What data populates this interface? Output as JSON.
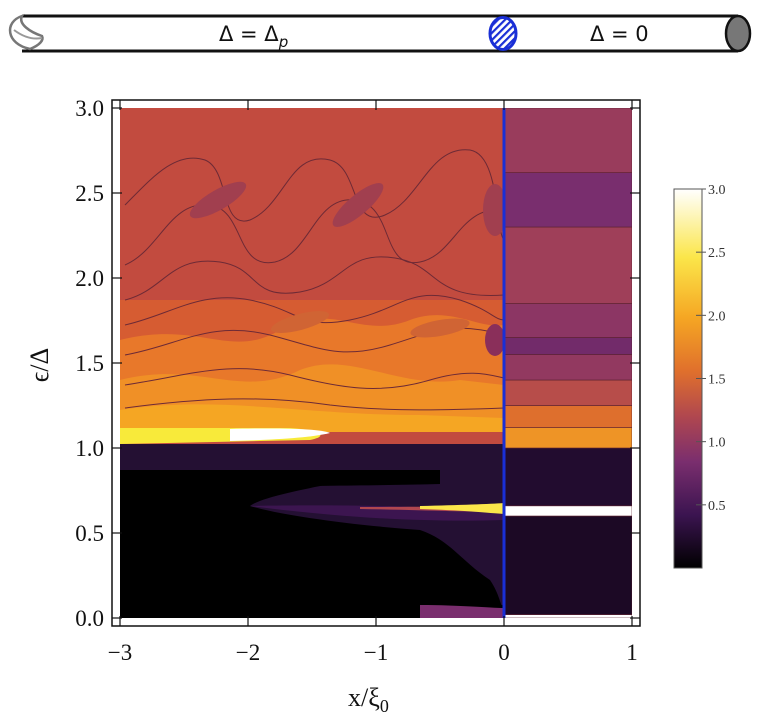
{
  "schematic": {
    "left_label_main": "Δ = Δ",
    "left_label_sub": "p",
    "right_label": "Δ = 0"
  },
  "chart_data": {
    "type": "heatmap",
    "xlabel_main": "x/ξ",
    "xlabel_sub": "0",
    "ylabel": "ϵ/Δ",
    "xlim": [
      -3,
      1
    ],
    "ylim": [
      0,
      3
    ],
    "x_ticks": [
      -3,
      -2,
      -1,
      0,
      1
    ],
    "x_tick_labels": [
      "−3",
      "−2",
      "−1",
      "0",
      "1"
    ],
    "y_ticks": [
      0,
      0.5,
      1,
      1.5,
      2,
      2.5,
      3
    ],
    "y_tick_labels": [
      "0.0",
      "0.5",
      "1.0",
      "1.5",
      "2.0",
      "2.5",
      "3.0"
    ],
    "interface_line_x": 0,
    "interface_line_color": "#1a2fd6",
    "colorbar": {
      "range": [
        0,
        3
      ],
      "ticks": [
        0.5,
        1,
        1.5,
        2,
        2.5,
        3
      ],
      "tick_labels": [
        "0.5",
        "1.0",
        "1.5",
        "2.0",
        "2.5",
        "3.0"
      ],
      "colors": [
        "#000000",
        "#3b1450",
        "#7a2e6e",
        "#b0474f",
        "#e0702c",
        "#f5a623",
        "#fbe64a",
        "#ffffff"
      ]
    },
    "right_region_bands": [
      {
        "y0": 0.0,
        "y1": 0.02,
        "value": 3.0
      },
      {
        "y0": 0.02,
        "y1": 0.6,
        "value": 0.2
      },
      {
        "y0": 0.6,
        "y1": 0.66,
        "value": 3.0
      },
      {
        "y0": 0.66,
        "y1": 1.0,
        "value": 0.25
      },
      {
        "y0": 1.0,
        "y1": 1.12,
        "value": 2.0
      },
      {
        "y0": 1.12,
        "y1": 1.25,
        "value": 1.7
      },
      {
        "y0": 1.25,
        "y1": 1.4,
        "value": 1.35
      },
      {
        "y0": 1.4,
        "y1": 1.55,
        "value": 1.05
      },
      {
        "y0": 1.55,
        "y1": 1.65,
        "value": 0.8
      },
      {
        "y0": 1.65,
        "y1": 1.85,
        "value": 1.0
      },
      {
        "y0": 1.85,
        "y1": 2.3,
        "value": 1.15
      },
      {
        "y0": 2.3,
        "y1": 2.62,
        "value": 0.85
      },
      {
        "y0": 2.62,
        "y1": 3.0,
        "value": 1.1
      }
    ],
    "peak_features": [
      {
        "name": "gap-edge-peak",
        "x_from": -3,
        "x_to": -1.6,
        "y": 1.06,
        "value": 3.0
      },
      {
        "name": "andreev-bound-state",
        "x_from": -0.4,
        "x_to": 1,
        "y": 0.63,
        "value": 3.0
      },
      {
        "name": "zero-energy-peak",
        "x_from": -0.3,
        "x_to": 1,
        "y": 0.01,
        "value": 3.0
      }
    ]
  }
}
